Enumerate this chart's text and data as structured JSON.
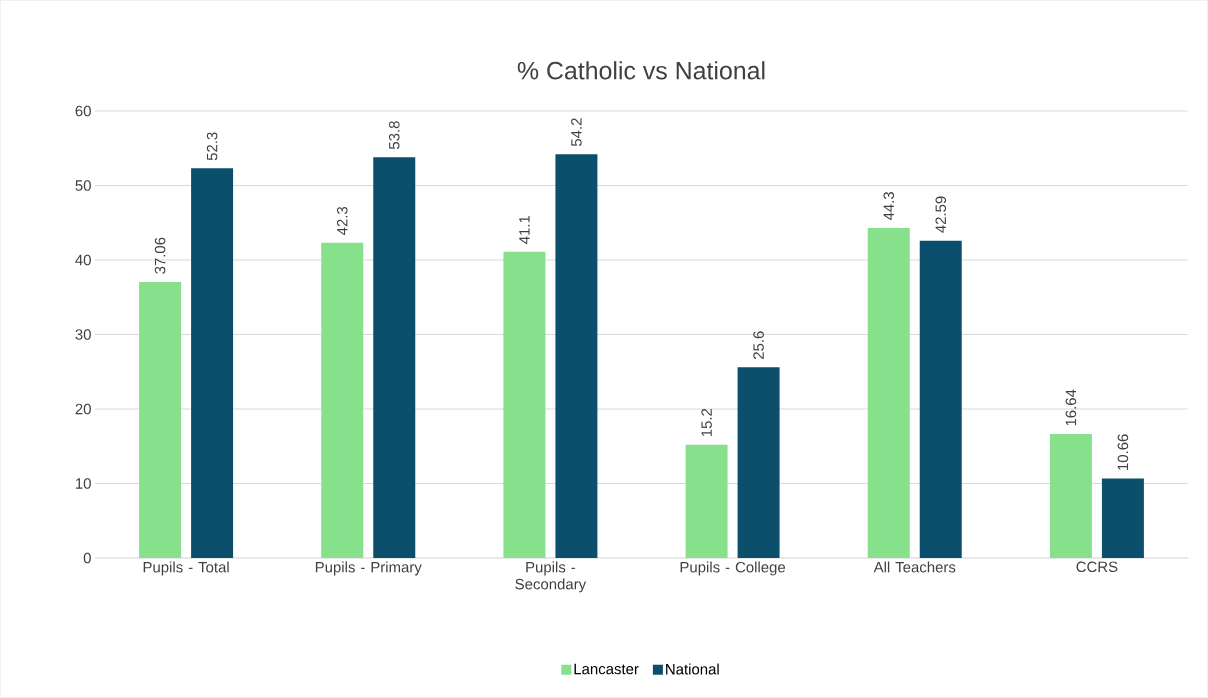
{
  "chart_data": {
    "type": "bar",
    "title": "% Catholic vs National",
    "categories": [
      "Pupils - Total",
      "Pupils - Primary",
      "Pupils - Secondary",
      "Pupils - College",
      "All Teachers",
      "CCRS"
    ],
    "series": [
      {
        "name": "Lancaster",
        "color": "#86e08c",
        "values": [
          37.06,
          42.3,
          41.1,
          15.2,
          44.3,
          16.64
        ]
      },
      {
        "name": "National",
        "color": "#0b4f6c",
        "values": [
          52.3,
          53.8,
          54.2,
          25.6,
          42.59,
          10.66
        ]
      }
    ],
    "ylim": [
      0,
      60
    ],
    "yticks": [
      0,
      10,
      20,
      30,
      40,
      50,
      60
    ],
    "grid": "y",
    "legend": "bottom",
    "data_labels": true
  }
}
